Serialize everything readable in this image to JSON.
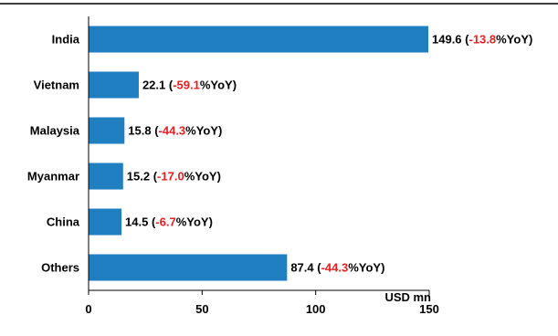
{
  "chart_data": {
    "type": "bar",
    "orientation": "horizontal",
    "categories": [
      "India",
      "Vietnam",
      "Malaysia",
      "Myanmar",
      "China",
      "Others"
    ],
    "values": [
      149.6,
      22.1,
      15.8,
      15.2,
      14.5,
      87.4
    ],
    "yoy": [
      "-13.8",
      "-59.1",
      "-44.3",
      "-17.0",
      "-6.7",
      "-44.3"
    ],
    "yoy_suffix": "%YoY",
    "xlim": [
      0,
      150
    ],
    "xticks": [
      0,
      50,
      100,
      150
    ],
    "xlabel": "USD mn",
    "bar_color": "#1f7fc1",
    "highlight_color": "#e8201f",
    "grid": false
  }
}
